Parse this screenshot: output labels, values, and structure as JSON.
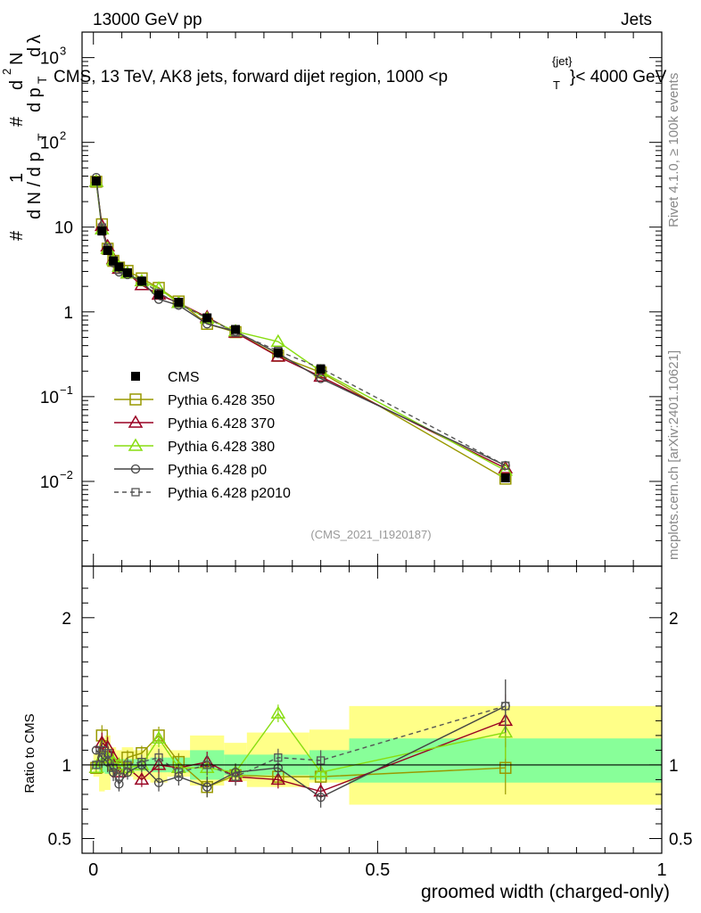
{
  "header": {
    "left": "13000 GeV pp",
    "right": "Jets",
    "plot_title": "CMS, 13 TeV, AK8 jets, forward dijet region, 1000 <p",
    "plot_title_sup": "{jet}",
    "plot_title_sub": "T",
    "plot_title_end": "}< 4000 GeV",
    "analysis_id": "(CMS_2021_I1920187)"
  },
  "side_labels": {
    "rivet": "Rivet 4.1.0, ≥ 100k events",
    "mcplots": "mcplots.cern.ch [arXiv:2401.10621]"
  },
  "y_axis_label": "1 / N dN / dp_T dλ",
  "y_axis_label_parts": [
    "#",
    "1",
    "d N / d p",
    "T",
    "#",
    "d p",
    "T",
    "d",
    "2",
    "N",
    "d",
    "λ"
  ],
  "ratio_axis_label": "Ratio to CMS",
  "x_axis_label": "groomed width (charged-only)",
  "legend": [
    {
      "label": "CMS",
      "color": "#000000",
      "marker": "filled-square",
      "dash": false
    },
    {
      "label": "Pythia 6.428 350",
      "color": "#999900",
      "marker": "open-square",
      "dash": false
    },
    {
      "label": "Pythia 6.428 370",
      "color": "#990022",
      "marker": "open-triangle",
      "dash": false
    },
    {
      "label": "Pythia 6.428 380",
      "color": "#88dd11",
      "marker": "open-triangle",
      "dash": false
    },
    {
      "label": "Pythia 6.428 p0",
      "color": "#444444",
      "marker": "open-circle",
      "dash": false
    },
    {
      "label": "Pythia 6.428 p2010",
      "color": "#555555",
      "marker": "open-square-small",
      "dash": true
    }
  ],
  "chart_data": {
    "type": "line",
    "title": "CMS, 13 TeV, AK8 jets, forward dijet region, 1000 < pT^{jet} < 4000 GeV",
    "xlabel": "groomed width (charged-only)",
    "ylabel": "1/N dN/dλ",
    "xlim": [
      -0.02,
      1.0
    ],
    "ylim": [
      0.001,
      2000
    ],
    "yscale": "log",
    "main_y_ticks": [
      {
        "v": 0.01,
        "t": "10",
        "sup": "−2"
      },
      {
        "v": 0.1,
        "t": "10",
        "sup": "−1"
      },
      {
        "v": 1,
        "t": "1",
        "sup": ""
      },
      {
        "v": 10,
        "t": "10",
        "sup": ""
      },
      {
        "v": 100,
        "t": "10",
        "sup": "2"
      },
      {
        "v": 1000,
        "t": "10",
        "sup": "3"
      }
    ],
    "x_ticks": [
      0,
      0.5,
      1
    ],
    "x_tick_labels": [
      "0",
      "0.5",
      "1"
    ],
    "ratio_ylim": [
      0.4,
      2.35
    ],
    "ratio_y_ticks": [
      0.5,
      1,
      2
    ],
    "ratio_y_tick_labels": [
      "0.5",
      "1",
      "2"
    ],
    "x": [
      0.005,
      0.015,
      0.025,
      0.035,
      0.045,
      0.06,
      0.085,
      0.115,
      0.15,
      0.2,
      0.25,
      0.325,
      0.4,
      0.725
    ],
    "bin_edges": [
      0,
      0.01,
      0.02,
      0.03,
      0.04,
      0.05,
      0.07,
      0.1,
      0.13,
      0.17,
      0.23,
      0.27,
      0.38,
      0.45,
      1.0
    ],
    "cms": [
      35,
      9,
      5.3,
      4.0,
      3.4,
      2.9,
      2.3,
      1.6,
      1.3,
      0.85,
      0.62,
      0.33,
      0.21,
      0.011
    ],
    "stat_band": [
      [
        0.97,
        1.03
      ],
      [
        0.95,
        1.05
      ],
      [
        0.94,
        1.06
      ],
      [
        0.95,
        1.05
      ],
      [
        0.96,
        1.04
      ],
      [
        0.96,
        1.04
      ],
      [
        0.96,
        1.04
      ],
      [
        0.95,
        1.05
      ],
      [
        0.95,
        1.05
      ],
      [
        0.9,
        1.1
      ],
      [
        0.93,
        1.07
      ],
      [
        0.93,
        1.07
      ],
      [
        0.9,
        1.1
      ],
      [
        0.88,
        1.18
      ]
    ],
    "total_band": [
      [
        0.92,
        1.08
      ],
      [
        0.82,
        1.18
      ],
      [
        0.83,
        1.2
      ],
      [
        0.92,
        1.12
      ],
      [
        0.93,
        1.1
      ],
      [
        0.92,
        1.12
      ],
      [
        0.9,
        1.1
      ],
      [
        0.88,
        1.14
      ],
      [
        0.92,
        1.1
      ],
      [
        0.86,
        1.2
      ],
      [
        0.89,
        1.15
      ],
      [
        0.85,
        1.22
      ],
      [
        0.88,
        1.24
      ],
      [
        0.73,
        1.4
      ]
    ],
    "series": [
      {
        "name": "Pythia 6.428 350",
        "ratio": [
          0.98,
          1.2,
          1.05,
          1.0,
          0.98,
          1.05,
          1.08,
          1.2,
          1.02,
          0.85,
          0.93,
          0.92,
          0.92,
          0.98
        ],
        "ratio_err": [
          0.03,
          0.07,
          0.07,
          0.06,
          0.05,
          0.05,
          0.05,
          0.06,
          0.06,
          0.07,
          0.06,
          0.06,
          0.07,
          0.18
        ]
      },
      {
        "name": "Pythia 6.428 370",
        "ratio": [
          0.98,
          1.15,
          1.12,
          1.05,
          0.95,
          0.98,
          0.9,
          1.0,
          0.98,
          1.02,
          0.92,
          0.9,
          0.82,
          1.3
        ],
        "ratio_err": [
          0.03,
          0.07,
          0.07,
          0.06,
          0.05,
          0.05,
          0.05,
          0.06,
          0.06,
          0.07,
          0.06,
          0.06,
          0.07,
          0.18
        ]
      },
      {
        "name": "Pythia 6.428 380",
        "ratio": [
          0.98,
          1.05,
          1.05,
          1.02,
          1.0,
          0.98,
          1.0,
          1.18,
          0.98,
          0.98,
          0.95,
          1.35,
          0.95,
          1.22
        ],
        "ratio_err": [
          0.03,
          0.07,
          0.07,
          0.06,
          0.05,
          0.05,
          0.05,
          0.06,
          0.06,
          0.07,
          0.06,
          0.06,
          0.07,
          0.18
        ]
      },
      {
        "name": "Pythia 6.428 p0",
        "ratio": [
          1.1,
          1.05,
          1.02,
          0.95,
          0.87,
          0.95,
          1.0,
          0.88,
          0.92,
          0.85,
          0.95,
          0.98,
          0.78,
          1.4
        ],
        "ratio_err": [
          0.03,
          0.07,
          0.07,
          0.06,
          0.05,
          0.05,
          0.05,
          0.06,
          0.06,
          0.07,
          0.06,
          0.06,
          0.07,
          0.18
        ]
      },
      {
        "name": "Pythia 6.428 p2010",
        "ratio": [
          1.0,
          1.1,
          1.08,
          0.98,
          0.92,
          1.0,
          1.02,
          1.05,
          0.95,
          1.0,
          0.92,
          1.05,
          1.03,
          1.4
        ],
        "ratio_err": [
          0.03,
          0.07,
          0.07,
          0.06,
          0.05,
          0.05,
          0.05,
          0.06,
          0.06,
          0.07,
          0.06,
          0.06,
          0.07,
          0.18
        ]
      }
    ]
  }
}
